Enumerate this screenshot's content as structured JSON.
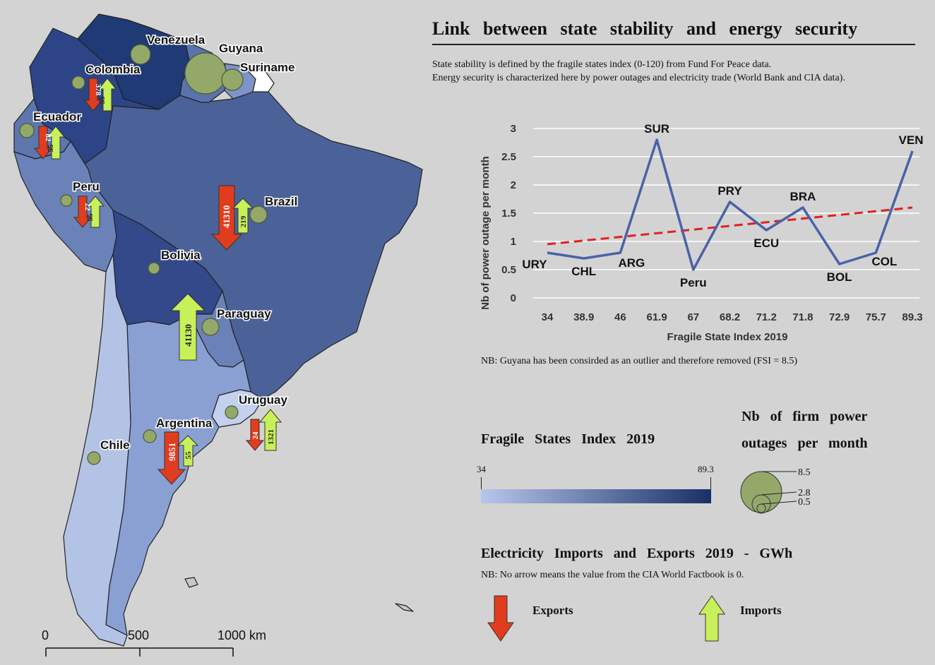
{
  "title": "Link between  state  stability  and energy  security",
  "subtitle_line1": "State stability is defined by the fragile states index (0-120) from Fund For Peace data.",
  "subtitle_line2": "Energy security is characterized here by power outages and electricity trade (World Bank and CIA data).",
  "note_guyana": "NB: Guyana has been consirded as an outlier and therefore removed (FSI = 8.5)",
  "map": {
    "countries": [
      {
        "name": "Venezuela",
        "fsi": 89.3
      },
      {
        "name": "Guyana",
        "fsi": 8.5
      },
      {
        "name": "Suriname",
        "fsi": 61.9
      },
      {
        "name": "Colombia",
        "fsi": 75.7
      },
      {
        "name": "Ecuador",
        "fsi": 71.2
      },
      {
        "name": "Peru",
        "fsi": 67
      },
      {
        "name": "Brazil",
        "fsi": 71.8
      },
      {
        "name": "Bolivia",
        "fsi": 72.9
      },
      {
        "name": "Paraguay",
        "fsi": 68.2
      },
      {
        "name": "Uruguay",
        "fsi": 34
      },
      {
        "name": "Argentina",
        "fsi": 46
      },
      {
        "name": "Chile",
        "fsi": 38.9
      }
    ],
    "trade": [
      {
        "country": "Colombia",
        "exports": "378",
        "imports": "55"
      },
      {
        "country": "Ecuador",
        "exports": "82",
        "imports": "55"
      },
      {
        "country": "Peru",
        "exports": "22",
        "imports": "55"
      },
      {
        "country": "Brazil",
        "exports": "41310",
        "imports": "219"
      },
      {
        "country": "Paraguay",
        "imports": "41130"
      },
      {
        "country": "Argentina",
        "exports": "9851",
        "imports": "55"
      },
      {
        "country": "Uruguay",
        "exports": "24",
        "imports": "1321"
      }
    ],
    "scale_bar": {
      "labels": [
        "0",
        "500",
        "1000 km"
      ]
    }
  },
  "chart_data": {
    "type": "line",
    "xlabel": "Fragile State Index 2019",
    "ylabel": "Nb of power outage per month",
    "categories": [
      "34",
      "38.9",
      "46",
      "61.9",
      "67",
      "68.2",
      "71.2",
      "71.8",
      "72.9",
      "75.7",
      "89.3"
    ],
    "point_labels": [
      "URY",
      "CHL",
      "ARG",
      "SUR",
      "Peru",
      "PRY",
      "ECU",
      "BRA",
      "BOL",
      "COL",
      "VEN"
    ],
    "series": [
      {
        "values": [
          0.8,
          0.7,
          0.8,
          2.8,
          0.5,
          1.7,
          1.2,
          1.6,
          0.6,
          0.8,
          2.6
        ],
        "color": "#4a62a8"
      }
    ],
    "trendline": {
      "start": 0.95,
      "end": 1.6,
      "color": "#e02020",
      "style": "dashed"
    },
    "yticks": [
      "0",
      "0.5",
      "1",
      "1.5",
      "2",
      "2.5",
      "3"
    ],
    "ylim": [
      0,
      3
    ],
    "grid": true
  },
  "legend": {
    "fsi_title": "Fragile  States  Index  2019",
    "fsi_min": "34",
    "fsi_max": "89.3",
    "fsi_color_low": "#b7c7ec",
    "fsi_color_high": "#1a2f66",
    "outage_title_line1": "Nb   of   firm   power",
    "outage_title_line2": "outages   per  month",
    "outage_values": [
      "8.5",
      "2.8",
      "0.5"
    ],
    "trade_title": "Electricity  Imports  and  Exports  2019   - GWh",
    "trade_note": "NB: No arrow means the value from the CIA World Factbook is 0.",
    "exports_label": "Exports",
    "imports_label": "Imports",
    "exports_color": "#e03c1e",
    "imports_color": "#c8f05a"
  }
}
